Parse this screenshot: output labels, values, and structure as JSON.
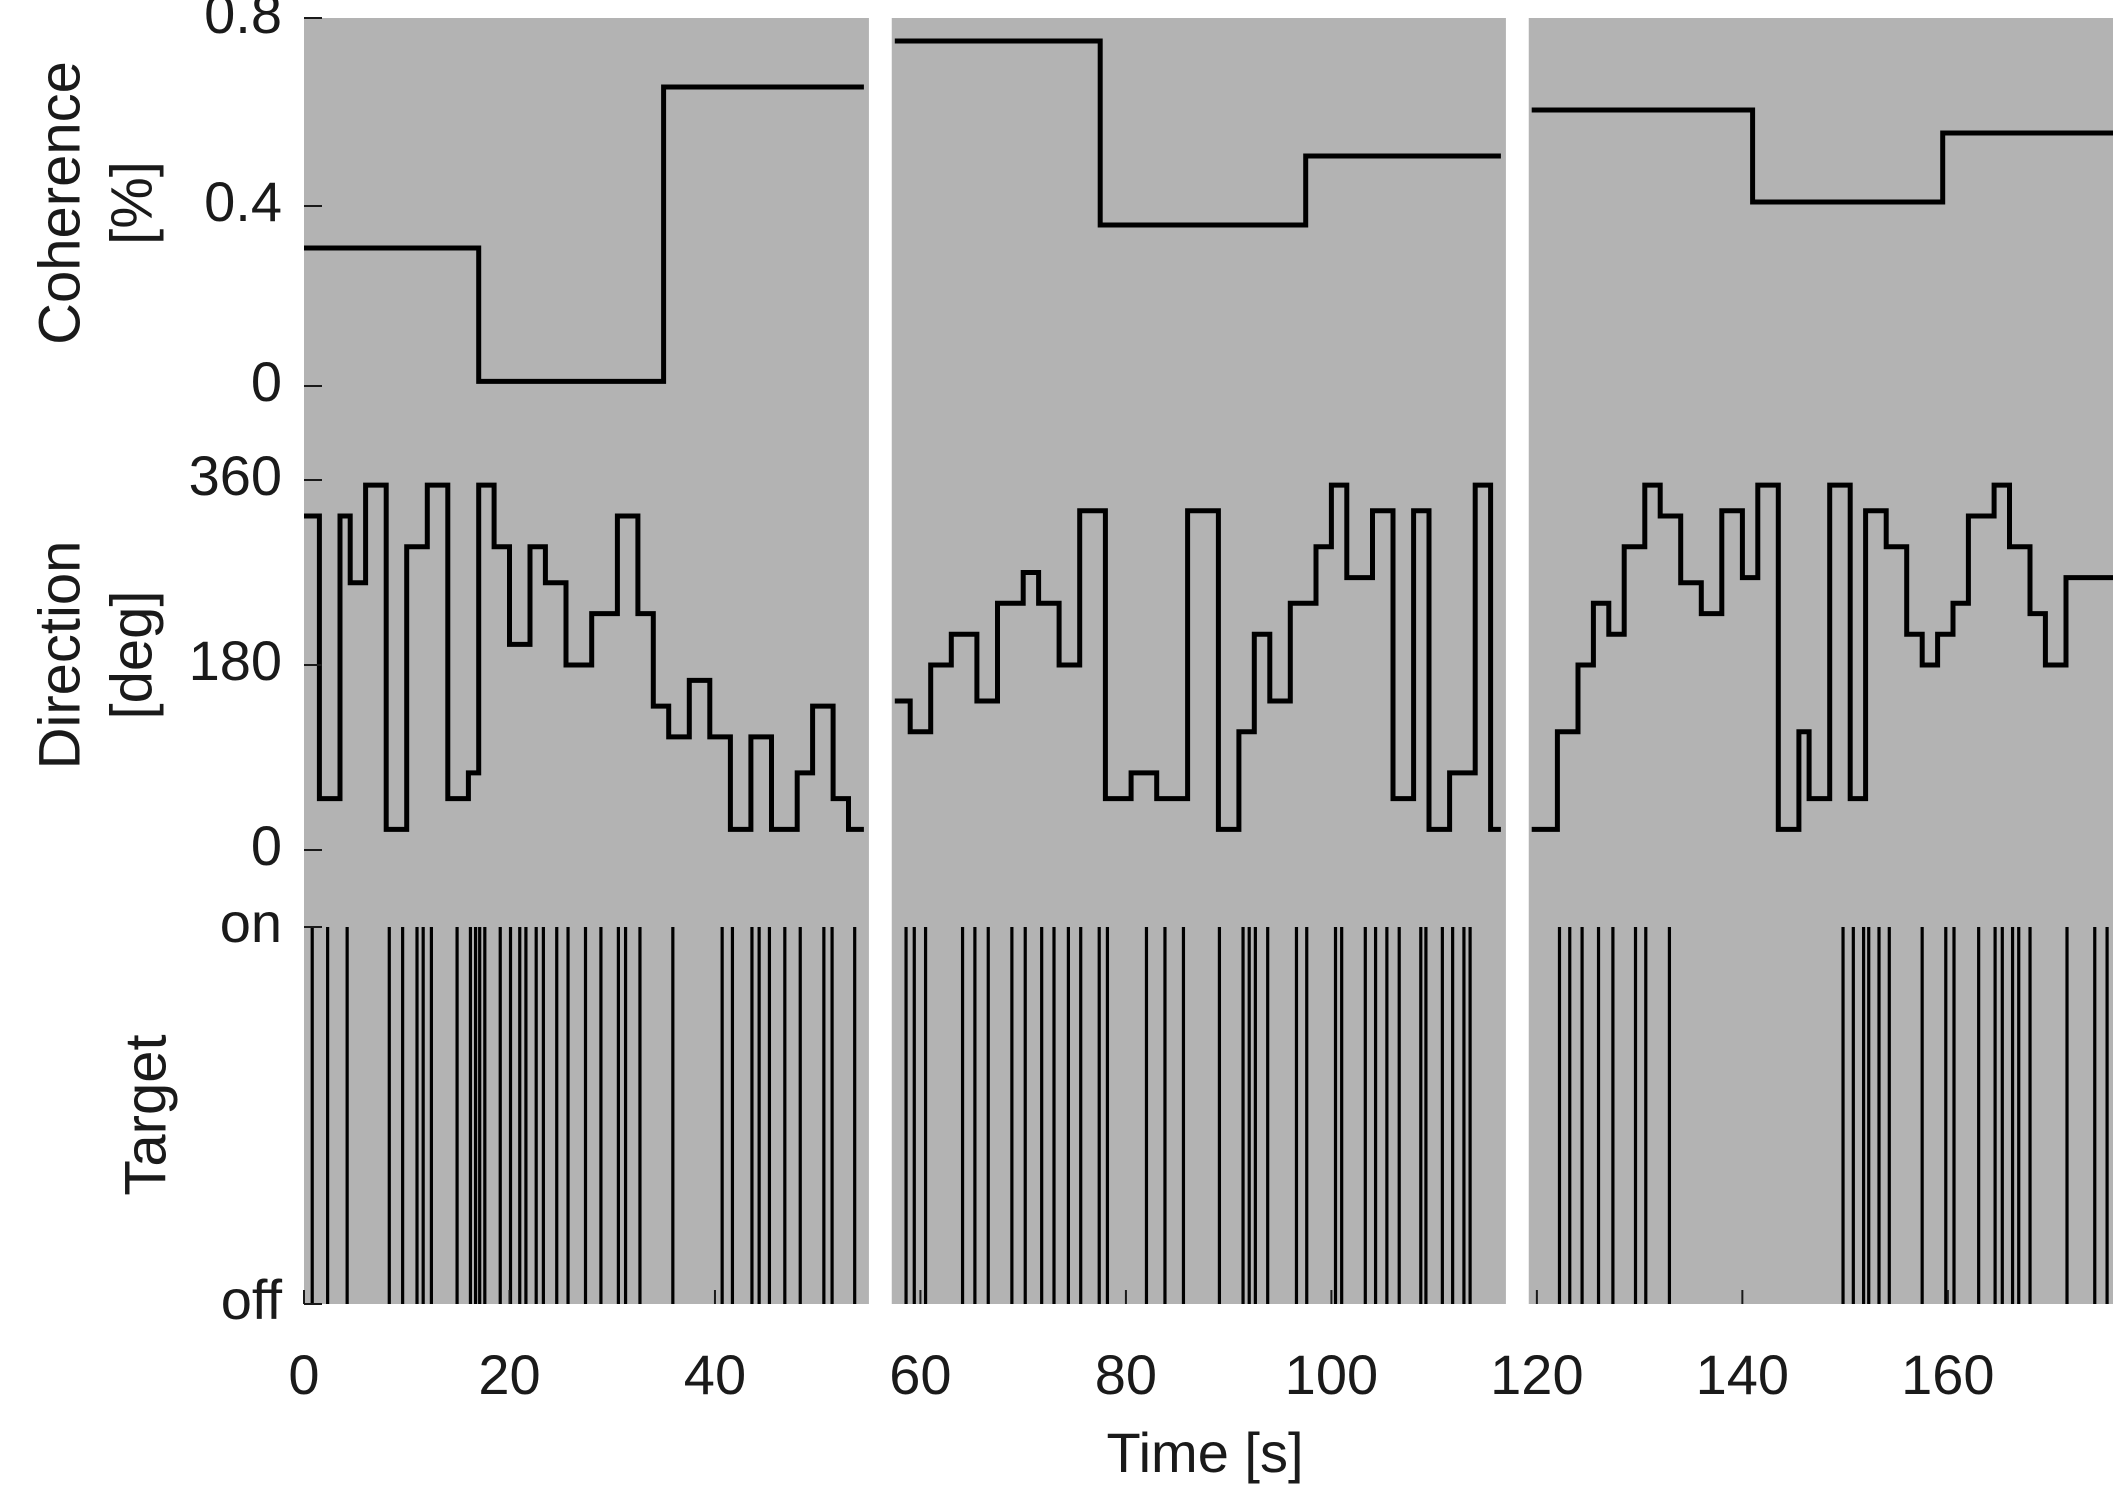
{
  "chart_data": {
    "type": "line",
    "xlabel": "Time [s]",
    "xlim": [
      0,
      177
    ],
    "x_ticks": [
      "0",
      "20",
      "40",
      "60",
      "80",
      "100",
      "120",
      "140",
      "160"
    ],
    "background_color": "#b3b3b3",
    "line_color": "#000000",
    "gap_color": "#ffffff",
    "blocks": [
      [
        0,
        54.5
      ],
      [
        57.5,
        116.5
      ],
      [
        119.5,
        177
      ]
    ],
    "panels": [
      {
        "name": "coherence",
        "ylabel": "Coherence [%]",
        "ylim": [
          0,
          0.8
        ],
        "y_ticks": [
          "0",
          "0.4",
          "0.8"
        ],
        "series": [
          {
            "steps": [
              [
                0,
                0.3
              ],
              [
                17,
                0.01
              ],
              [
                35,
                0.65
              ]
            ]
          },
          {
            "steps": [
              [
                57.5,
                0.75
              ],
              [
                77.5,
                0.35
              ],
              [
                97.5,
                0.5
              ]
            ]
          },
          {
            "steps": [
              [
                119.5,
                0.6
              ],
              [
                141,
                0.4
              ],
              [
                159.5,
                0.55
              ]
            ]
          }
        ]
      },
      {
        "name": "direction",
        "ylabel": "Direction [deg]",
        "ylim": [
          0,
          360
        ],
        "y_ticks": [
          "0",
          "180",
          "360"
        ],
        "series": [
          {
            "steps": [
              [
                0,
                325
              ],
              [
                1.5,
                50
              ],
              [
                3.5,
                325
              ],
              [
                4.5,
                260
              ],
              [
                6,
                355
              ],
              [
                8,
                20
              ],
              [
                10,
                295
              ],
              [
                12,
                355
              ],
              [
                14,
                50
              ],
              [
                16,
                75
              ],
              [
                17,
                355
              ],
              [
                18.5,
                295
              ],
              [
                20,
                200
              ],
              [
                22,
                295
              ],
              [
                23.5,
                260
              ],
              [
                25.5,
                180
              ],
              [
                28,
                230
              ],
              [
                30.5,
                325
              ],
              [
                32.5,
                230
              ],
              [
                34,
                140
              ],
              [
                35.5,
                110
              ],
              [
                37.5,
                165
              ],
              [
                39.5,
                110
              ],
              [
                41.5,
                20
              ],
              [
                43.5,
                110
              ],
              [
                45.5,
                20
              ],
              [
                48,
                75
              ],
              [
                49.5,
                140
              ],
              [
                51.5,
                50
              ],
              [
                53,
                20
              ],
              [
                54.5,
                20
              ]
            ]
          },
          {
            "steps": [
              [
                57.5,
                145
              ],
              [
                59,
                115
              ],
              [
                61,
                180
              ],
              [
                63,
                210
              ],
              [
                65.5,
                145
              ],
              [
                67.5,
                240
              ],
              [
                70,
                270
              ],
              [
                71.5,
                240
              ],
              [
                73.5,
                180
              ],
              [
                75.5,
                330
              ],
              [
                78,
                50
              ],
              [
                80.5,
                75
              ],
              [
                83,
                50
              ],
              [
                86,
                330
              ],
              [
                89,
                20
              ],
              [
                91,
                115
              ],
              [
                92.5,
                210
              ],
              [
                94,
                145
              ],
              [
                96,
                240
              ],
              [
                98.5,
                295
              ],
              [
                100,
                355
              ],
              [
                101.5,
                265
              ],
              [
                104,
                330
              ],
              [
                106,
                50
              ],
              [
                108,
                330
              ],
              [
                109.5,
                20
              ],
              [
                111.5,
                75
              ],
              [
                114,
                355
              ],
              [
                115.5,
                20
              ],
              [
                116.5,
                20
              ]
            ]
          },
          {
            "steps": [
              [
                119.5,
                20
              ],
              [
                122,
                115
              ],
              [
                124,
                180
              ],
              [
                125.5,
                240
              ],
              [
                127,
                210
              ],
              [
                128.5,
                295
              ],
              [
                130.5,
                355
              ],
              [
                132,
                325
              ],
              [
                134,
                260
              ],
              [
                136,
                230
              ],
              [
                138,
                330
              ],
              [
                140,
                265
              ],
              [
                141.5,
                355
              ],
              [
                143.5,
                20
              ],
              [
                145.5,
                115
              ],
              [
                146.5,
                50
              ],
              [
                148.5,
                355
              ],
              [
                150.5,
                50
              ],
              [
                152,
                330
              ],
              [
                154,
                295
              ],
              [
                156,
                210
              ],
              [
                157.5,
                180
              ],
              [
                159,
                210
              ],
              [
                160.5,
                240
              ],
              [
                162,
                325
              ],
              [
                164.5,
                355
              ],
              [
                166,
                295
              ],
              [
                168,
                230
              ],
              [
                169.5,
                180
              ],
              [
                171.5,
                265
              ],
              [
                173,
                265
              ]
            ]
          }
        ]
      },
      {
        "name": "target",
        "ylabel": "Target",
        "y_ticks": [
          "off",
          "on"
        ],
        "target_on_times": [
          0.8,
          2.3,
          4.2,
          8.3,
          9.6,
          11.0,
          11.6,
          12.4,
          14.9,
          16.2,
          16.7,
          17.1,
          17.6,
          19.1,
          20.1,
          21.0,
          21.6,
          22.6,
          23.3,
          24.6,
          25.7,
          27.4,
          28.9,
          30.6,
          31.3,
          32.7,
          35.9,
          40.7,
          41.7,
          43.6,
          44.3,
          45.3,
          46.8,
          48.3,
          50.6,
          51.4,
          53.6,
          58.6,
          59.4,
          60.5,
          64.1,
          65.3,
          66.6,
          68.9,
          70.2,
          71.8,
          73.0,
          74.4,
          75.6,
          77.4,
          78.2,
          82.0,
          83.8,
          85.6,
          89.1,
          91.4,
          92.0,
          92.6,
          93.8,
          96.6,
          97.6,
          100.4,
          101.0,
          103.3,
          104.3,
          105.4,
          106.6,
          108.7,
          109.2,
          110.8,
          111.8,
          112.9,
          113.5,
          122.2,
          123.2,
          124.4,
          126.0,
          127.4,
          129.6,
          130.6,
          132.9,
          149.8,
          150.8,
          151.8,
          152.3,
          153.3,
          154.3,
          157.5,
          159.8,
          160.6,
          163.0,
          164.6,
          165.3,
          166.3,
          166.9,
          168.0,
          171.6,
          174.3,
          175.5
        ]
      }
    ]
  }
}
